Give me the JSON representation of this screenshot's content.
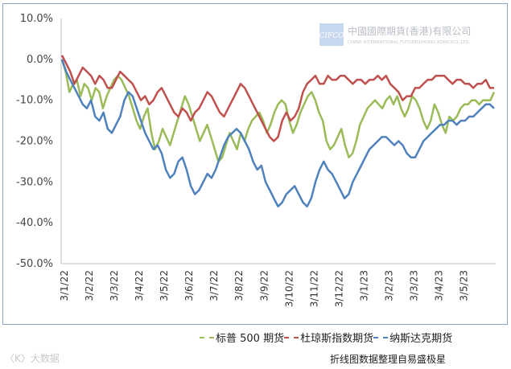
{
  "chart_data": {
    "type": "line",
    "title": "",
    "xlabel": "",
    "ylabel": "",
    "ylim": [
      -50,
      10
    ],
    "yticks": [
      10,
      0,
      -10,
      -20,
      -30,
      -40,
      -50
    ],
    "ytick_labels": [
      "10.0%",
      "0.0%",
      "-10.0%",
      "-20.0%",
      "-30.0%",
      "-40.0%",
      "-50.0%"
    ],
    "x_tick_labels": [
      "3/1/22",
      "3/2/22",
      "3/3/22",
      "3/4/22",
      "3/5/22",
      "3/6/22",
      "3/7/22",
      "3/8/22",
      "3/9/22",
      "3/10/22",
      "3/11/22",
      "3/12/22",
      "3/1/23",
      "3/2/23",
      "3/3/23",
      "3/4/23",
      "3/5/23"
    ],
    "grid": false,
    "legend_position": "bottom-right",
    "series": [
      {
        "name": "标普 500 期货",
        "color": "#9bbb59",
        "values": [
          0,
          -3,
          -8,
          -6,
          -5,
          -9,
          -6,
          -7,
          -10,
          -7,
          -8,
          -12,
          -9,
          -7,
          -5,
          -4,
          -5,
          -7,
          -9,
          -12,
          -15,
          -17,
          -14,
          -12,
          -18,
          -22,
          -20,
          -17,
          -19,
          -21,
          -18,
          -15,
          -12,
          -9,
          -11,
          -14,
          -17,
          -20,
          -18,
          -16,
          -19,
          -22,
          -25,
          -24,
          -21,
          -18,
          -20,
          -22,
          -18,
          -20,
          -17,
          -15,
          -14,
          -13,
          -15,
          -18,
          -16,
          -13,
          -11,
          -10,
          -11,
          -15,
          -18,
          -16,
          -13,
          -11,
          -9,
          -8,
          -10,
          -13,
          -15,
          -20,
          -22,
          -21,
          -19,
          -17,
          -21,
          -24,
          -23,
          -20,
          -16,
          -14,
          -12,
          -11,
          -10,
          -11,
          -12,
          -10,
          -9,
          -11,
          -9,
          -12,
          -14,
          -12,
          -9,
          -10,
          -12,
          -15,
          -17,
          -15,
          -11,
          -13,
          -16,
          -18,
          -14,
          -15,
          -14,
          -12,
          -11,
          -11,
          -10,
          -10,
          -11,
          -10,
          -10,
          -10,
          -8
        ]
      },
      {
        "name": "杜琼斯指数期货",
        "color": "#c0504d",
        "values": [
          1,
          -1,
          -3,
          -6,
          -4,
          -2,
          -3,
          -4,
          -6,
          -4,
          -5,
          -7,
          -7,
          -5,
          -3,
          -4,
          -5,
          -6,
          -8,
          -10,
          -9,
          -11,
          -10,
          -8,
          -7,
          -9,
          -11,
          -13,
          -14,
          -12,
          -13,
          -15,
          -13,
          -12,
          -10,
          -8,
          -9,
          -11,
          -13,
          -14,
          -12,
          -10,
          -8,
          -6,
          -7,
          -9,
          -11,
          -13,
          -15,
          -17,
          -19,
          -20,
          -19,
          -15,
          -13,
          -15,
          -14,
          -12,
          -8,
          -6,
          -5,
          -4,
          -6,
          -6,
          -4,
          -5,
          -5,
          -4,
          -4,
          -5,
          -6,
          -5,
          -5,
          -6,
          -5,
          -5,
          -4,
          -5,
          -4,
          -6,
          -7,
          -8,
          -10,
          -9,
          -9,
          -7,
          -7,
          -6,
          -5,
          -5,
          -4,
          -4,
          -4,
          -5,
          -6,
          -5,
          -5,
          -6,
          -6,
          -7,
          -6,
          -6,
          -5,
          -7,
          -7
        ]
      },
      {
        "name": "纳斯达克期货",
        "color": "#4f81bd",
        "values": [
          0,
          -3,
          -5,
          -7,
          -9,
          -11,
          -12,
          -10,
          -14,
          -15,
          -13,
          -17,
          -18,
          -16,
          -14,
          -10,
          -8,
          -9,
          -12,
          -15,
          -18,
          -20,
          -22,
          -21,
          -23,
          -27,
          -29,
          -28,
          -25,
          -24,
          -27,
          -31,
          -33,
          -32,
          -30,
          -28,
          -29,
          -27,
          -24,
          -21,
          -19,
          -18,
          -17,
          -18,
          -20,
          -22,
          -25,
          -27,
          -26,
          -30,
          -32,
          -34,
          -36,
          -35,
          -33,
          -32,
          -31,
          -33,
          -35,
          -36,
          -34,
          -30,
          -27,
          -25,
          -27,
          -28,
          -30,
          -32,
          -34,
          -33,
          -30,
          -28,
          -26,
          -24,
          -22,
          -21,
          -20,
          -19,
          -19,
          -20,
          -21,
          -20,
          -21,
          -23,
          -24,
          -24,
          -22,
          -20,
          -19,
          -18,
          -17,
          -16,
          -16,
          -15,
          -15,
          -16,
          -15,
          -15,
          -14,
          -14,
          -13,
          -12,
          -11,
          -11,
          -12
        ]
      }
    ]
  },
  "watermark": {
    "title": "中國國際期貨(香港)有限公司",
    "subtitle": "CHINA INTERNATIONAL FUTURES(HONG KONG)CO.,LTD.",
    "logo_text": "CIFCO"
  },
  "legend_text": [
    "标普 500 期货",
    "杜琼斯指数期货",
    "纳斯达克期货"
  ],
  "footer": {
    "left": "〈K〉大数据",
    "right": "折线图数据整理自易盛极星"
  }
}
